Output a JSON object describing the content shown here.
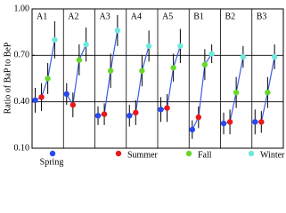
{
  "chart_data": {
    "type": "dot",
    "y_label": "Ratio of BaP to BeP",
    "categories": [
      "A1",
      "A2",
      "A3",
      "A4",
      "A5",
      "B1",
      "B2",
      "B3"
    ],
    "ylim": [
      0.1,
      1.0
    ],
    "yticks": [
      {
        "value": 0.1,
        "label": "0.10"
      },
      {
        "value": 0.4,
        "label": "0.40"
      },
      {
        "value": 0.7,
        "label": "0.70"
      },
      {
        "value": 1.0,
        "label": "1.00"
      }
    ],
    "grid": true,
    "legend": "bottom",
    "line_color": "#3a5fe0",
    "series": [
      {
        "name": "Spring",
        "color": "#2848f0",
        "values": [
          0.41,
          0.45,
          0.31,
          0.31,
          0.35,
          0.22,
          0.26,
          0.27
        ],
        "errors": [
          0.08,
          0.07,
          0.06,
          0.07,
          0.08,
          0.06,
          0.07,
          0.08
        ]
      },
      {
        "name": "Summer",
        "color": "#e81818",
        "values": [
          0.43,
          0.38,
          0.32,
          0.33,
          0.36,
          0.3,
          0.27,
          0.27
        ],
        "errors": [
          0.09,
          0.08,
          0.07,
          0.08,
          0.09,
          0.07,
          0.08,
          0.07
        ]
      },
      {
        "name": "Fall",
        "color": "#66d82a",
        "values": [
          0.55,
          0.67,
          0.6,
          0.6,
          0.62,
          0.64,
          0.46,
          0.46
        ],
        "errors": [
          0.1,
          0.1,
          0.11,
          0.1,
          0.09,
          0.1,
          0.1,
          0.1
        ]
      },
      {
        "name": "Winter",
        "color": "#6ee8dc",
        "values": [
          0.8,
          0.77,
          0.86,
          0.76,
          0.76,
          0.71,
          0.69,
          0.69
        ],
        "errors": [
          0.12,
          0.11,
          0.1,
          0.1,
          0.11,
          0.06,
          0.07,
          0.08
        ]
      }
    ]
  }
}
